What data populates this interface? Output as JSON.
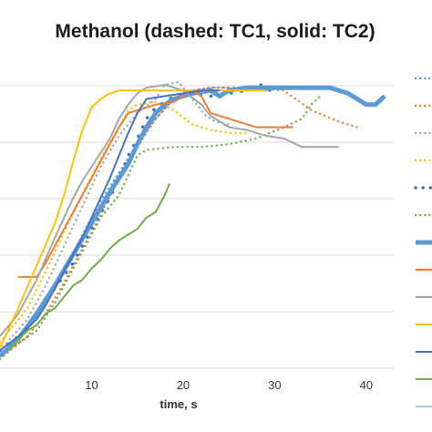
{
  "chart_data": {
    "type": "line",
    "title": "Methanol (dashed: TC1, solid: TC2)",
    "xlabel": "time, s",
    "ylabel": "",
    "xlim": [
      0,
      43
    ],
    "ylim": [
      0,
      1
    ],
    "x_ticks": [
      10,
      20,
      30,
      40
    ],
    "grid": "horizontal",
    "legend_position": "right (cropped)",
    "series": [
      {
        "color": "#5B9BD5",
        "dash": "dotted",
        "width": 2.4,
        "points": [
          [
            0,
            0.03
          ],
          [
            3,
            0.12
          ],
          [
            5,
            0.22
          ],
          [
            7,
            0.33
          ],
          [
            9,
            0.46
          ],
          [
            11,
            0.58
          ],
          [
            13,
            0.68
          ],
          [
            15,
            0.78
          ],
          [
            17,
            0.87
          ],
          [
            19,
            0.94
          ],
          [
            21,
            0.97
          ],
          [
            23,
            0.98
          ],
          [
            25,
            0.98
          ],
          [
            27,
            0.97
          ],
          [
            29,
            0.97
          ],
          [
            31,
            0.98
          ]
        ]
      },
      {
        "color": "#ED7D31",
        "dash": "dotted",
        "width": 2.4,
        "points": [
          [
            0,
            0.02
          ],
          [
            3,
            0.1
          ],
          [
            5,
            0.18
          ],
          [
            7,
            0.29
          ],
          [
            9,
            0.41
          ],
          [
            11,
            0.53
          ],
          [
            13,
            0.66
          ],
          [
            15,
            0.77
          ],
          [
            17,
            0.87
          ],
          [
            19,
            0.94
          ],
          [
            21,
            0.97
          ],
          [
            23,
            0.98
          ],
          [
            27,
            0.98
          ],
          [
            31,
            0.97
          ],
          [
            34,
            0.9
          ],
          [
            37,
            0.86
          ],
          [
            39,
            0.84
          ]
        ]
      },
      {
        "color": "#A5A5A5",
        "dash": "dotted",
        "width": 2.4,
        "points": [
          [
            0,
            0.05
          ],
          [
            3,
            0.16
          ],
          [
            5,
            0.28
          ],
          [
            7,
            0.42
          ],
          [
            9,
            0.56
          ],
          [
            11,
            0.7
          ],
          [
            13,
            0.81
          ],
          [
            15,
            0.89
          ],
          [
            17,
            0.94
          ],
          [
            18,
            0.99
          ],
          [
            19.5,
            1.0
          ],
          [
            21,
            0.94
          ],
          [
            22.5,
            0.88
          ],
          [
            23.5,
            0.86
          ],
          [
            25,
            0.85
          ]
        ]
      },
      {
        "color": "#FFC000",
        "dash": "dotted",
        "width": 2.4,
        "points": [
          [
            0,
            0.08
          ],
          [
            3,
            0.2
          ],
          [
            5,
            0.33
          ],
          [
            7,
            0.47
          ],
          [
            9,
            0.6
          ],
          [
            11,
            0.73
          ],
          [
            13,
            0.84
          ],
          [
            14,
            0.9
          ],
          [
            15,
            0.92
          ],
          [
            17,
            0.93
          ],
          [
            19,
            0.9
          ],
          [
            21,
            0.85
          ],
          [
            23,
            0.83
          ],
          [
            25,
            0.82
          ],
          [
            27,
            0.82
          ]
        ]
      },
      {
        "color": "#4472C4",
        "dash": "dots-large",
        "width": 3.5,
        "points": [
          [
            0,
            0.05
          ],
          [
            2,
            0.1
          ],
          [
            4,
            0.18
          ],
          [
            6,
            0.27
          ],
          [
            8,
            0.36
          ],
          [
            10,
            0.48
          ],
          [
            12,
            0.59
          ],
          [
            13,
            0.66
          ],
          [
            14,
            0.74
          ],
          [
            15,
            0.8
          ],
          [
            16,
            0.87
          ],
          [
            17,
            0.91
          ],
          [
            19,
            0.95
          ],
          [
            21,
            0.96
          ],
          [
            23,
            0.95
          ],
          [
            25,
            0.96
          ],
          [
            27,
            0.97
          ],
          [
            28.5,
            0.99
          ],
          [
            30,
            0.96
          ]
        ]
      },
      {
        "color": "#70AD47",
        "dash": "dotted",
        "width": 2.4,
        "points": [
          [
            0,
            0.03
          ],
          [
            4,
            0.12
          ],
          [
            6,
            0.22
          ],
          [
            8,
            0.34
          ],
          [
            10,
            0.46
          ],
          [
            11,
            0.52
          ],
          [
            13,
            0.6
          ],
          [
            14,
            0.67
          ],
          [
            15,
            0.74
          ],
          [
            16,
            0.76
          ],
          [
            19,
            0.77
          ],
          [
            22,
            0.77
          ],
          [
            25,
            0.78
          ],
          [
            28,
            0.8
          ],
          [
            31,
            0.84
          ],
          [
            33,
            0.87
          ],
          [
            34,
            0.92
          ],
          [
            35,
            0.95
          ]
        ]
      },
      {
        "color": "#5B9BD5",
        "dash": "solid",
        "width": 5,
        "points": [
          [
            0,
            0.03
          ],
          [
            2,
            0.09
          ],
          [
            4,
            0.18
          ],
          [
            6,
            0.28
          ],
          [
            8,
            0.39
          ],
          [
            10,
            0.5
          ],
          [
            12,
            0.61
          ],
          [
            14,
            0.71
          ],
          [
            15,
            0.78
          ],
          [
            16,
            0.84
          ],
          [
            17,
            0.89
          ],
          [
            18,
            0.92
          ],
          [
            19,
            0.94
          ],
          [
            21,
            0.96
          ],
          [
            23,
            0.97
          ],
          [
            24,
            0.95
          ],
          [
            25,
            0.97
          ],
          [
            27,
            0.98
          ],
          [
            31,
            0.98
          ],
          [
            36,
            0.98
          ],
          [
            38,
            0.96
          ],
          [
            40,
            0.92
          ],
          [
            41,
            0.92
          ],
          [
            42,
            0.95
          ]
        ]
      },
      {
        "color": "#ED7D31",
        "dash": "solid",
        "width": 2,
        "points": [
          [
            2,
            0.31
          ],
          [
            4,
            0.31
          ],
          [
            5,
            0.36
          ],
          [
            7,
            0.48
          ],
          [
            9,
            0.6
          ],
          [
            11,
            0.72
          ],
          [
            13,
            0.84
          ],
          [
            14,
            0.89
          ],
          [
            15,
            0.9
          ],
          [
            17,
            0.92
          ],
          [
            19,
            0.93
          ],
          [
            21,
            0.97
          ],
          [
            22,
            0.95
          ],
          [
            23,
            0.89
          ],
          [
            26,
            0.86
          ],
          [
            28,
            0.84
          ],
          [
            30,
            0.84
          ],
          [
            32,
            0.84
          ]
        ]
      },
      {
        "color": "#A5A5A5",
        "dash": "solid",
        "width": 2,
        "points": [
          [
            0,
            0.1
          ],
          [
            2,
            0.18
          ],
          [
            4,
            0.3
          ],
          [
            6,
            0.45
          ],
          [
            8,
            0.59
          ],
          [
            9,
            0.65
          ],
          [
            10,
            0.7
          ],
          [
            12,
            0.8
          ],
          [
            13,
            0.87
          ],
          [
            14,
            0.92
          ],
          [
            15,
            0.96
          ],
          [
            16,
            0.98
          ],
          [
            18,
            0.99
          ],
          [
            20,
            0.97
          ],
          [
            22,
            0.92
          ],
          [
            23,
            0.88
          ],
          [
            25,
            0.84
          ],
          [
            27,
            0.83
          ],
          [
            29,
            0.81
          ],
          [
            31,
            0.8
          ],
          [
            33,
            0.77
          ],
          [
            35,
            0.77
          ],
          [
            37,
            0.77
          ]
        ]
      },
      {
        "color": "#FFC000",
        "dash": "solid",
        "width": 2,
        "points": [
          [
            0,
            0.06
          ],
          [
            2,
            0.2
          ],
          [
            4,
            0.35
          ],
          [
            6,
            0.5
          ],
          [
            7,
            0.6
          ],
          [
            8,
            0.72
          ],
          [
            9,
            0.83
          ],
          [
            10,
            0.91
          ],
          [
            11,
            0.94
          ],
          [
            12,
            0.96
          ],
          [
            13,
            0.97
          ],
          [
            15,
            0.97
          ],
          [
            17,
            0.97
          ],
          [
            19,
            0.97
          ],
          [
            21,
            0.97
          ],
          [
            23,
            0.97
          ],
          [
            25,
            0.97
          ],
          [
            27,
            0.97
          ],
          [
            29,
            0.97
          ]
        ]
      },
      {
        "color": "#4472C4",
        "dash": "solid",
        "width": 2,
        "points": [
          [
            0,
            0.05
          ],
          [
            2,
            0.1
          ],
          [
            4,
            0.16
          ],
          [
            5,
            0.21
          ],
          [
            6,
            0.27
          ],
          [
            7,
            0.33
          ],
          [
            8,
            0.39
          ],
          [
            9,
            0.45
          ],
          [
            10,
            0.52
          ],
          [
            11,
            0.59
          ],
          [
            12,
            0.66
          ],
          [
            13,
            0.74
          ],
          [
            14,
            0.82
          ],
          [
            15,
            0.89
          ],
          [
            16,
            0.94
          ],
          [
            18,
            0.95
          ],
          [
            20,
            0.96
          ],
          [
            22,
            0.97
          ],
          [
            24,
            0.97
          ]
        ]
      },
      {
        "color": "#70AD47",
        "dash": "solid",
        "width": 2,
        "points": [
          [
            1,
            0.05
          ],
          [
            2,
            0.09
          ],
          [
            3,
            0.12
          ],
          [
            4,
            0.14
          ],
          [
            5,
            0.18
          ],
          [
            6,
            0.2
          ],
          [
            7,
            0.24
          ],
          [
            8,
            0.28
          ],
          [
            9,
            0.3
          ],
          [
            10,
            0.34
          ],
          [
            11,
            0.37
          ],
          [
            12,
            0.41
          ],
          [
            13,
            0.44
          ],
          [
            14,
            0.46
          ],
          [
            15,
            0.48
          ],
          [
            16,
            0.52
          ],
          [
            17,
            0.54
          ],
          [
            18,
            0.6
          ],
          [
            18.5,
            0.64
          ]
        ]
      }
    ],
    "legend_swatches": [
      {
        "color": "#5B9BD5",
        "dash": "dotted"
      },
      {
        "color": "#ED7D31",
        "dash": "dotted"
      },
      {
        "color": "#A5A5A5",
        "dash": "dotted"
      },
      {
        "color": "#FFC000",
        "dash": "dotted"
      },
      {
        "color": "#4472C4",
        "dash": "dots-large"
      },
      {
        "color": "#70AD47",
        "dash": "dotted"
      },
      {
        "color": "#5B9BD5",
        "dash": "solid-thick"
      },
      {
        "color": "#ED7D31",
        "dash": "solid"
      },
      {
        "color": "#A5A5A5",
        "dash": "solid"
      },
      {
        "color": "#FFC000",
        "dash": "solid"
      },
      {
        "color": "#4472C4",
        "dash": "solid"
      },
      {
        "color": "#70AD47",
        "dash": "solid"
      },
      {
        "color": "#A9C8EA",
        "dash": "solid"
      }
    ]
  }
}
